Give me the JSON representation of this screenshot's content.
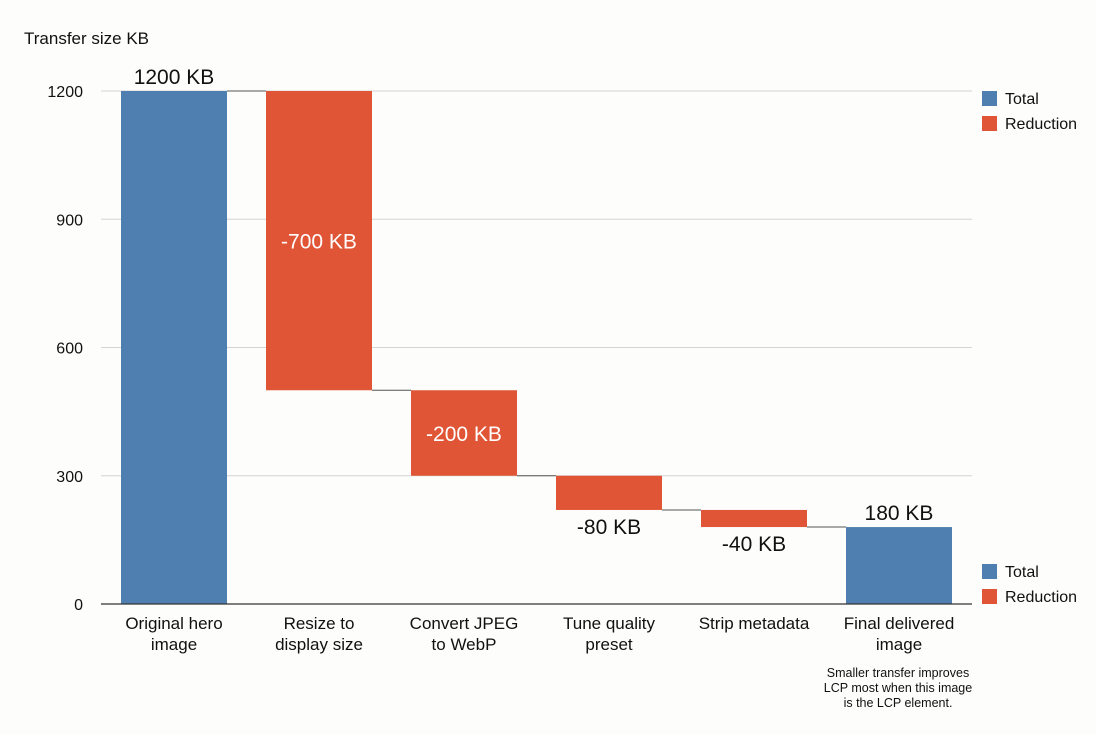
{
  "chart_data": {
    "type": "waterfall",
    "ylabel": "Transfer size KB",
    "ylim": [
      0,
      1200
    ],
    "yticks": [
      0,
      300,
      600,
      900,
      1200
    ],
    "grid": true,
    "categories": [
      [
        "Original hero",
        "image"
      ],
      [
        "Resize to",
        "display size"
      ],
      [
        "Convert JPEG",
        "to WebP"
      ],
      [
        "Tune quality",
        "preset"
      ],
      [
        "Strip metadata"
      ],
      [
        "Final delivered",
        "image"
      ]
    ],
    "steps": [
      {
        "kind": "total",
        "value": 1200,
        "label": "1200 KB"
      },
      {
        "kind": "reduction",
        "value": -700,
        "label": "-700 KB"
      },
      {
        "kind": "reduction",
        "value": -200,
        "label": "-200 KB"
      },
      {
        "kind": "reduction",
        "value": -80,
        "label": "-80 KB"
      },
      {
        "kind": "reduction",
        "value": -40,
        "label": "-40 KB"
      },
      {
        "kind": "total",
        "value": 180,
        "label": "180 KB"
      }
    ],
    "legend": [
      {
        "name": "Total",
        "color": "#4f7fb0"
      },
      {
        "name": "Reduction",
        "color": "#e05535"
      }
    ],
    "legend_placement": "right (top and bottom)",
    "annotation": [
      "Smaller transfer improves",
      "LCP most when this image",
      "is the LCP element."
    ]
  }
}
